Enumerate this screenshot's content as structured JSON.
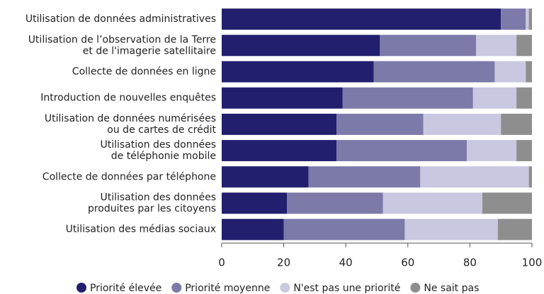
{
  "chart_data": {
    "type": "stacked-bar-horizontal",
    "categories": [
      "Utilisation de données administratives",
      "Utilisation de l’observation de la Terre\net de l'imagerie satellitaire",
      "Collecte de données en ligne",
      "Introduction de nouvelles enquêtes",
      "Utilisation de données numérisées\nou de cartes de crédit",
      "Utilisation des données\nde téléphonie mobile",
      "Collecte de données par téléphone",
      "Utilisation des données\nproduites par les citoyens",
      "Utilisation des médias sociaux"
    ],
    "series": [
      {
        "name": "Priorité élevée",
        "color": "#221f6e",
        "values": [
          90,
          51,
          49,
          39,
          37,
          37,
          28,
          21,
          20
        ]
      },
      {
        "name": "Priorité moyenne",
        "color": "#7c7aa9",
        "values": [
          8,
          31,
          39,
          42,
          28,
          42,
          36,
          31,
          39
        ]
      },
      {
        "name": "N'est pas une priorité",
        "color": "#c8c8e0",
        "values": [
          1,
          13,
          10,
          14,
          25,
          16,
          35,
          32,
          30
        ]
      },
      {
        "name": "Ne sait pas",
        "color": "#8e8e8e",
        "values": [
          1,
          5,
          2,
          5,
          10,
          5,
          1,
          16,
          11
        ]
      }
    ],
    "xlim": [
      0,
      100
    ],
    "xticks": [
      0,
      20,
      40,
      60,
      80,
      100
    ]
  }
}
